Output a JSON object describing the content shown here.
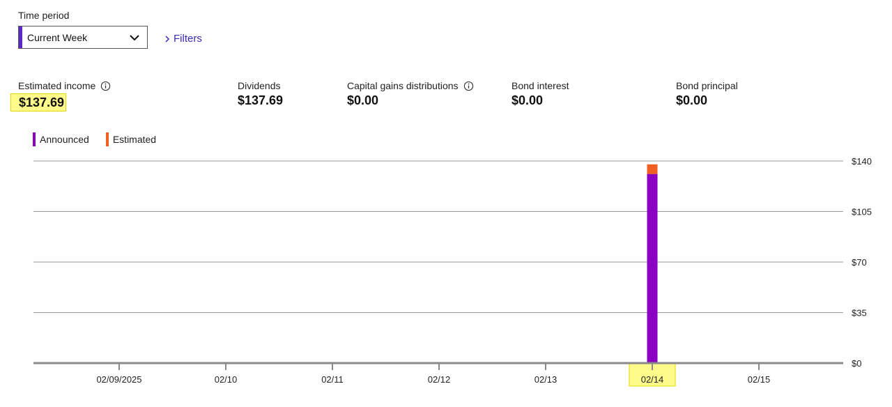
{
  "colors": {
    "accent": "#5b2bc7",
    "link": "#3a2bb5",
    "announced": "#8a00c2",
    "estimated": "#f25f22",
    "highlight": "#fffb8a",
    "grid": "#9a9a9a",
    "axis": "#8a8a8a"
  },
  "filters_bar": {
    "time_period_label": "Time period",
    "time_period_value": "Current Week",
    "filters_label": "Filters"
  },
  "summary": {
    "estimated_income": {
      "label": "Estimated income",
      "value": "$137.69"
    },
    "dividends": {
      "label": "Dividends",
      "value": "$137.69"
    },
    "capital_gains": {
      "label": "Capital gains distributions",
      "value": "$0.00"
    },
    "bond_interest": {
      "label": "Bond interest",
      "value": "$0.00"
    },
    "bond_principal": {
      "label": "Bond principal",
      "value": "$0.00"
    }
  },
  "chart_data": {
    "type": "bar",
    "stacked": true,
    "categories": [
      "02/09/2025",
      "02/10",
      "02/11",
      "02/12",
      "02/13",
      "02/14",
      "02/15"
    ],
    "series": [
      {
        "name": "Announced",
        "values": [
          0,
          0,
          0,
          0,
          0,
          131,
          0
        ]
      },
      {
        "name": "Estimated",
        "values": [
          0,
          0,
          0,
          0,
          0,
          6.69,
          0
        ]
      }
    ],
    "y_ticks": [
      "$0",
      "$35",
      "$70",
      "$105",
      "$140"
    ],
    "ylim": [
      0,
      140
    ],
    "y_axis_side": "right",
    "grid": true,
    "legend": "top-left",
    "highlighted_category": "02/14"
  }
}
